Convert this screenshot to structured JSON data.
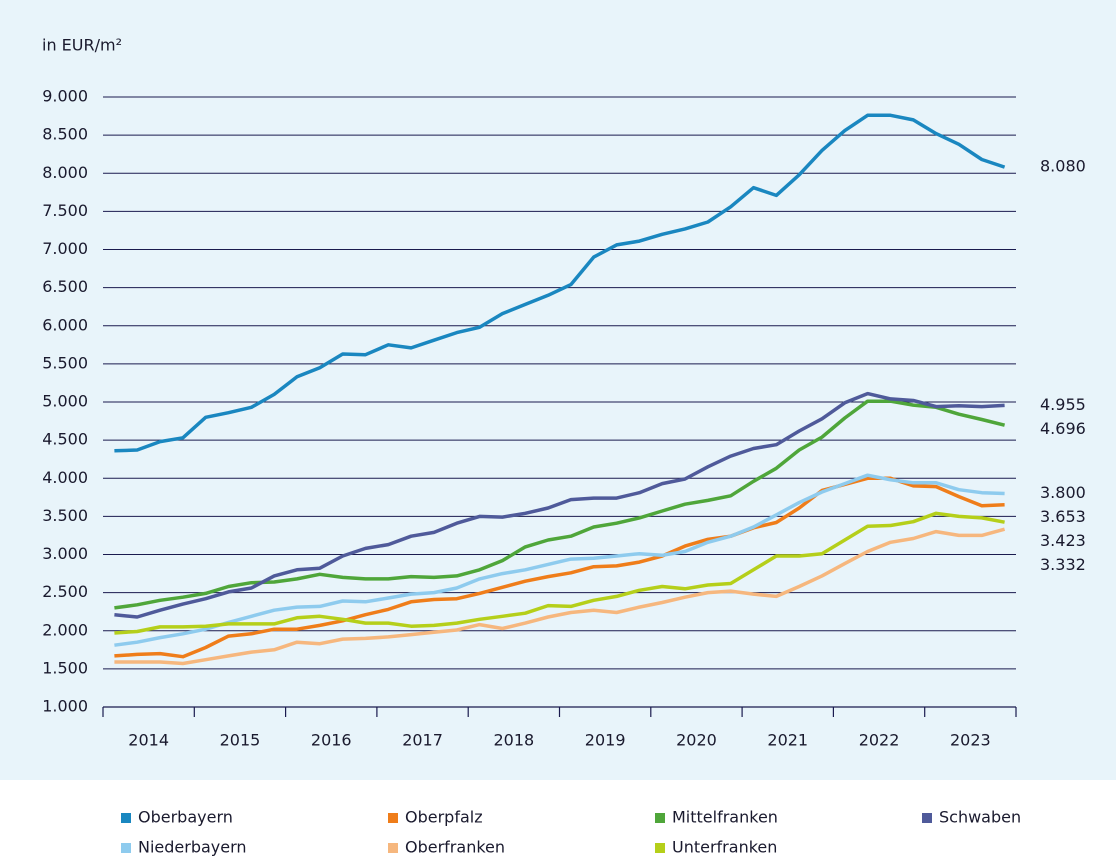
{
  "chart_data": {
    "type": "line",
    "y_axis_label": "in EUR/m²",
    "categories": [
      "2014",
      null,
      null,
      null,
      "2015",
      null,
      null,
      null,
      "2016",
      null,
      null,
      null,
      "2017",
      null,
      null,
      null,
      "2018",
      null,
      null,
      null,
      "2019",
      null,
      null,
      null,
      "2020",
      null,
      null,
      null,
      "2021",
      null,
      null,
      null,
      "2022",
      null,
      null,
      null,
      "2023",
      null,
      null,
      null
    ],
    "ylim": [
      1000,
      9000
    ],
    "yticks": [
      {
        "value": 1000,
        "label": "1.000"
      },
      {
        "value": 1500,
        "label": "1.500"
      },
      {
        "value": 2000,
        "label": "2.000"
      },
      {
        "value": 2500,
        "label": "2.500"
      },
      {
        "value": 3000,
        "label": "3.000"
      },
      {
        "value": 3500,
        "label": "3.500"
      },
      {
        "value": 4000,
        "label": "4.000"
      },
      {
        "value": 4500,
        "label": "4.500"
      },
      {
        "value": 5000,
        "label": "5.000"
      },
      {
        "value": 5500,
        "label": "5.500"
      },
      {
        "value": 6000,
        "label": "6.000"
      },
      {
        "value": 6500,
        "label": "6.500"
      },
      {
        "value": 7000,
        "label": "7.000"
      },
      {
        "value": 7500,
        "label": "7.500"
      },
      {
        "value": 8000,
        "label": "8.000"
      },
      {
        "value": 8500,
        "label": "8.500"
      },
      {
        "value": 9000,
        "label": "9.000"
      }
    ],
    "grid": true,
    "legend": "bottom",
    "series": [
      {
        "name": "Oberbayern",
        "color": "#1a87c0",
        "last_label": "8.080",
        "values": [
          4360,
          4370,
          4480,
          4530,
          4800,
          4860,
          4930,
          5100,
          5330,
          5450,
          5630,
          5620,
          5750,
          5710,
          5810,
          5910,
          5980,
          6160,
          6280,
          6400,
          6540,
          6900,
          7060,
          7110,
          7200,
          7270,
          7360,
          7560,
          7810,
          7710,
          7980,
          8300,
          8560,
          8760,
          8760,
          8700,
          8520,
          8380,
          8180,
          8080
        ]
      },
      {
        "name": "Oberpfalz",
        "color": "#ef7d1a",
        "last_label": "3.653",
        "values": [
          1670,
          1690,
          1700,
          1660,
          1780,
          1930,
          1960,
          2020,
          2020,
          2070,
          2130,
          2210,
          2280,
          2380,
          2410,
          2420,
          2490,
          2570,
          2650,
          2710,
          2760,
          2840,
          2850,
          2900,
          2980,
          3110,
          3200,
          3240,
          3350,
          3420,
          3610,
          3840,
          3920,
          4000,
          4000,
          3900,
          3890,
          3760,
          3640,
          3653
        ]
      },
      {
        "name": "Mittelfranken",
        "color": "#4fa63a",
        "last_label": "4.696",
        "values": [
          2300,
          2340,
          2400,
          2440,
          2490,
          2580,
          2630,
          2640,
          2680,
          2740,
          2700,
          2680,
          2680,
          2710,
          2700,
          2720,
          2800,
          2920,
          3100,
          3190,
          3240,
          3360,
          3410,
          3480,
          3570,
          3660,
          3710,
          3770,
          3960,
          4130,
          4370,
          4540,
          4790,
          5010,
          5010,
          4960,
          4930,
          4840,
          4770,
          4696
        ]
      },
      {
        "name": "Schwaben",
        "color": "#4f5a9a",
        "last_label": "4.955",
        "values": [
          2210,
          2180,
          2270,
          2350,
          2420,
          2510,
          2560,
          2720,
          2800,
          2820,
          2980,
          3080,
          3130,
          3240,
          3290,
          3410,
          3500,
          3490,
          3540,
          3610,
          3720,
          3740,
          3740,
          3810,
          3930,
          3990,
          4150,
          4290,
          4390,
          4440,
          4620,
          4780,
          4990,
          5110,
          5040,
          5020,
          4940,
          4950,
          4940,
          4955
        ]
      },
      {
        "name": "Niederbayern",
        "color": "#8ecbee",
        "last_label": "3.800",
        "values": [
          1810,
          1850,
          1910,
          1960,
          2020,
          2110,
          2190,
          2270,
          2310,
          2320,
          2390,
          2380,
          2430,
          2480,
          2500,
          2560,
          2680,
          2750,
          2800,
          2870,
          2940,
          2950,
          2980,
          3010,
          2990,
          3040,
          3160,
          3240,
          3360,
          3520,
          3680,
          3820,
          3930,
          4040,
          3980,
          3940,
          3940,
          3850,
          3810,
          3800
        ]
      },
      {
        "name": "Oberfranken",
        "color": "#f6b77e",
        "last_label": "3.332",
        "values": [
          1590,
          1590,
          1590,
          1570,
          1620,
          1670,
          1720,
          1750,
          1850,
          1830,
          1890,
          1900,
          1920,
          1950,
          1980,
          2010,
          2080,
          2030,
          2100,
          2180,
          2240,
          2270,
          2240,
          2310,
          2370,
          2440,
          2500,
          2520,
          2480,
          2450,
          2580,
          2720,
          2880,
          3040,
          3160,
          3210,
          3300,
          3250,
          3250,
          3332
        ]
      },
      {
        "name": "Unterfranken",
        "color": "#b5cf1a",
        "last_label": "3.423",
        "values": [
          1970,
          1990,
          2050,
          2050,
          2060,
          2090,
          2090,
          2090,
          2170,
          2190,
          2150,
          2100,
          2100,
          2060,
          2070,
          2100,
          2150,
          2190,
          2230,
          2330,
          2320,
          2400,
          2450,
          2530,
          2580,
          2550,
          2600,
          2620,
          2800,
          2980,
          2980,
          3010,
          3190,
          3370,
          3380,
          3430,
          3540,
          3500,
          3480,
          3423
        ]
      }
    ]
  }
}
